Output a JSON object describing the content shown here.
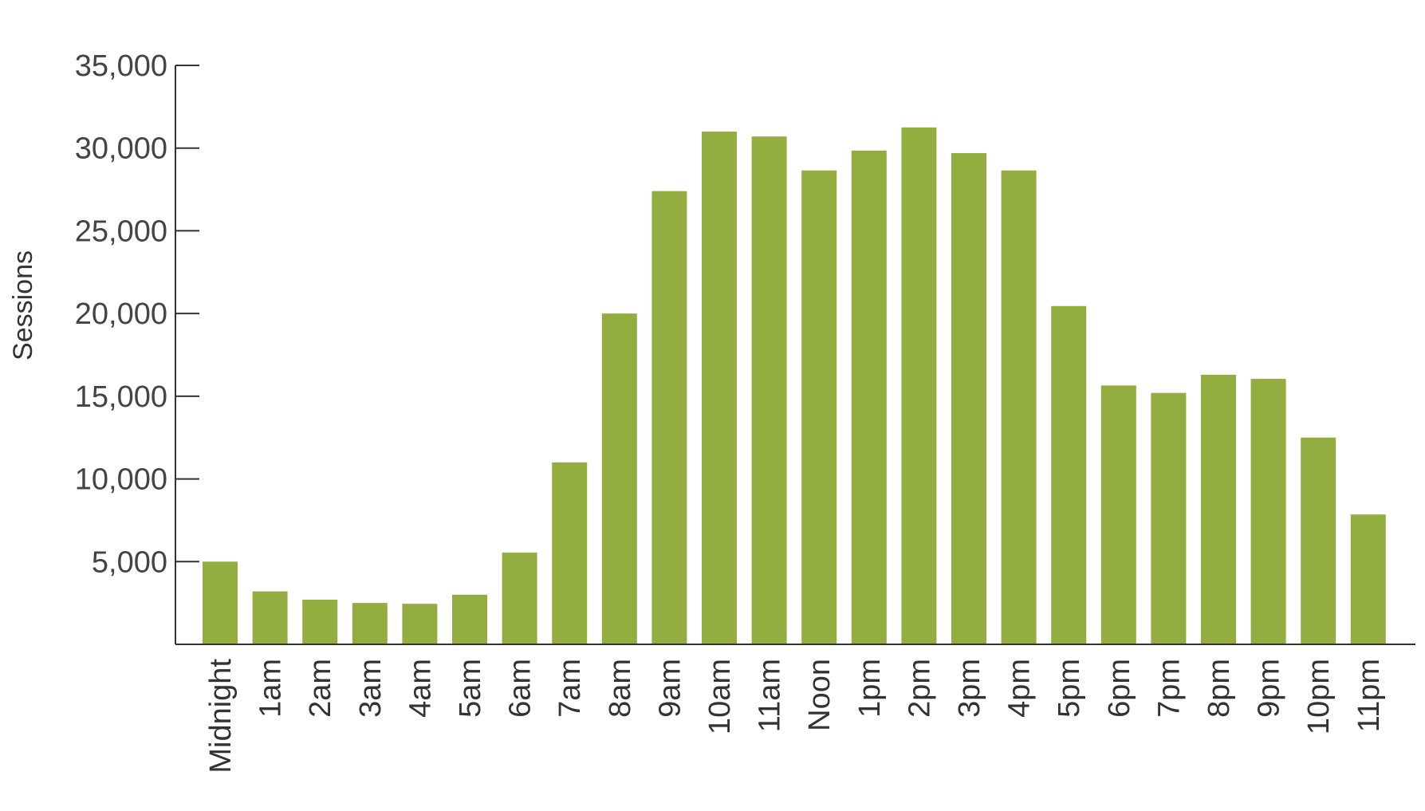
{
  "chart_data": {
    "type": "bar",
    "title": "",
    "xlabel": "",
    "ylabel": "Sessions",
    "ylim": [
      0,
      35000
    ],
    "yticks": [
      5000,
      10000,
      15000,
      20000,
      25000,
      30000,
      35000
    ],
    "ytick_labels": [
      "5,000",
      "10,000",
      "15,000",
      "20,000",
      "25,000",
      "30,000",
      "35,000"
    ],
    "grid": false,
    "legend": "none",
    "bar_color": "#94ad41",
    "categories": [
      "Midnight",
      "1am",
      "2am",
      "3am",
      "4am",
      "5am",
      "6am",
      "7am",
      "8am",
      "9am",
      "10am",
      "11am",
      "Noon",
      "1pm",
      "2pm",
      "3pm",
      "4pm",
      "5pm",
      "6pm",
      "7pm",
      "8pm",
      "9pm",
      "10pm",
      "11pm"
    ],
    "series": [
      {
        "values": [
          5000,
          3200,
          2700,
          2500,
          2450,
          3000,
          5550,
          11000,
          20000,
          27400,
          31000,
          30700,
          28650,
          29850,
          31250,
          29700,
          28650,
          20450,
          15650,
          15200,
          16300,
          16050,
          12500,
          7850
        ]
      }
    ]
  }
}
